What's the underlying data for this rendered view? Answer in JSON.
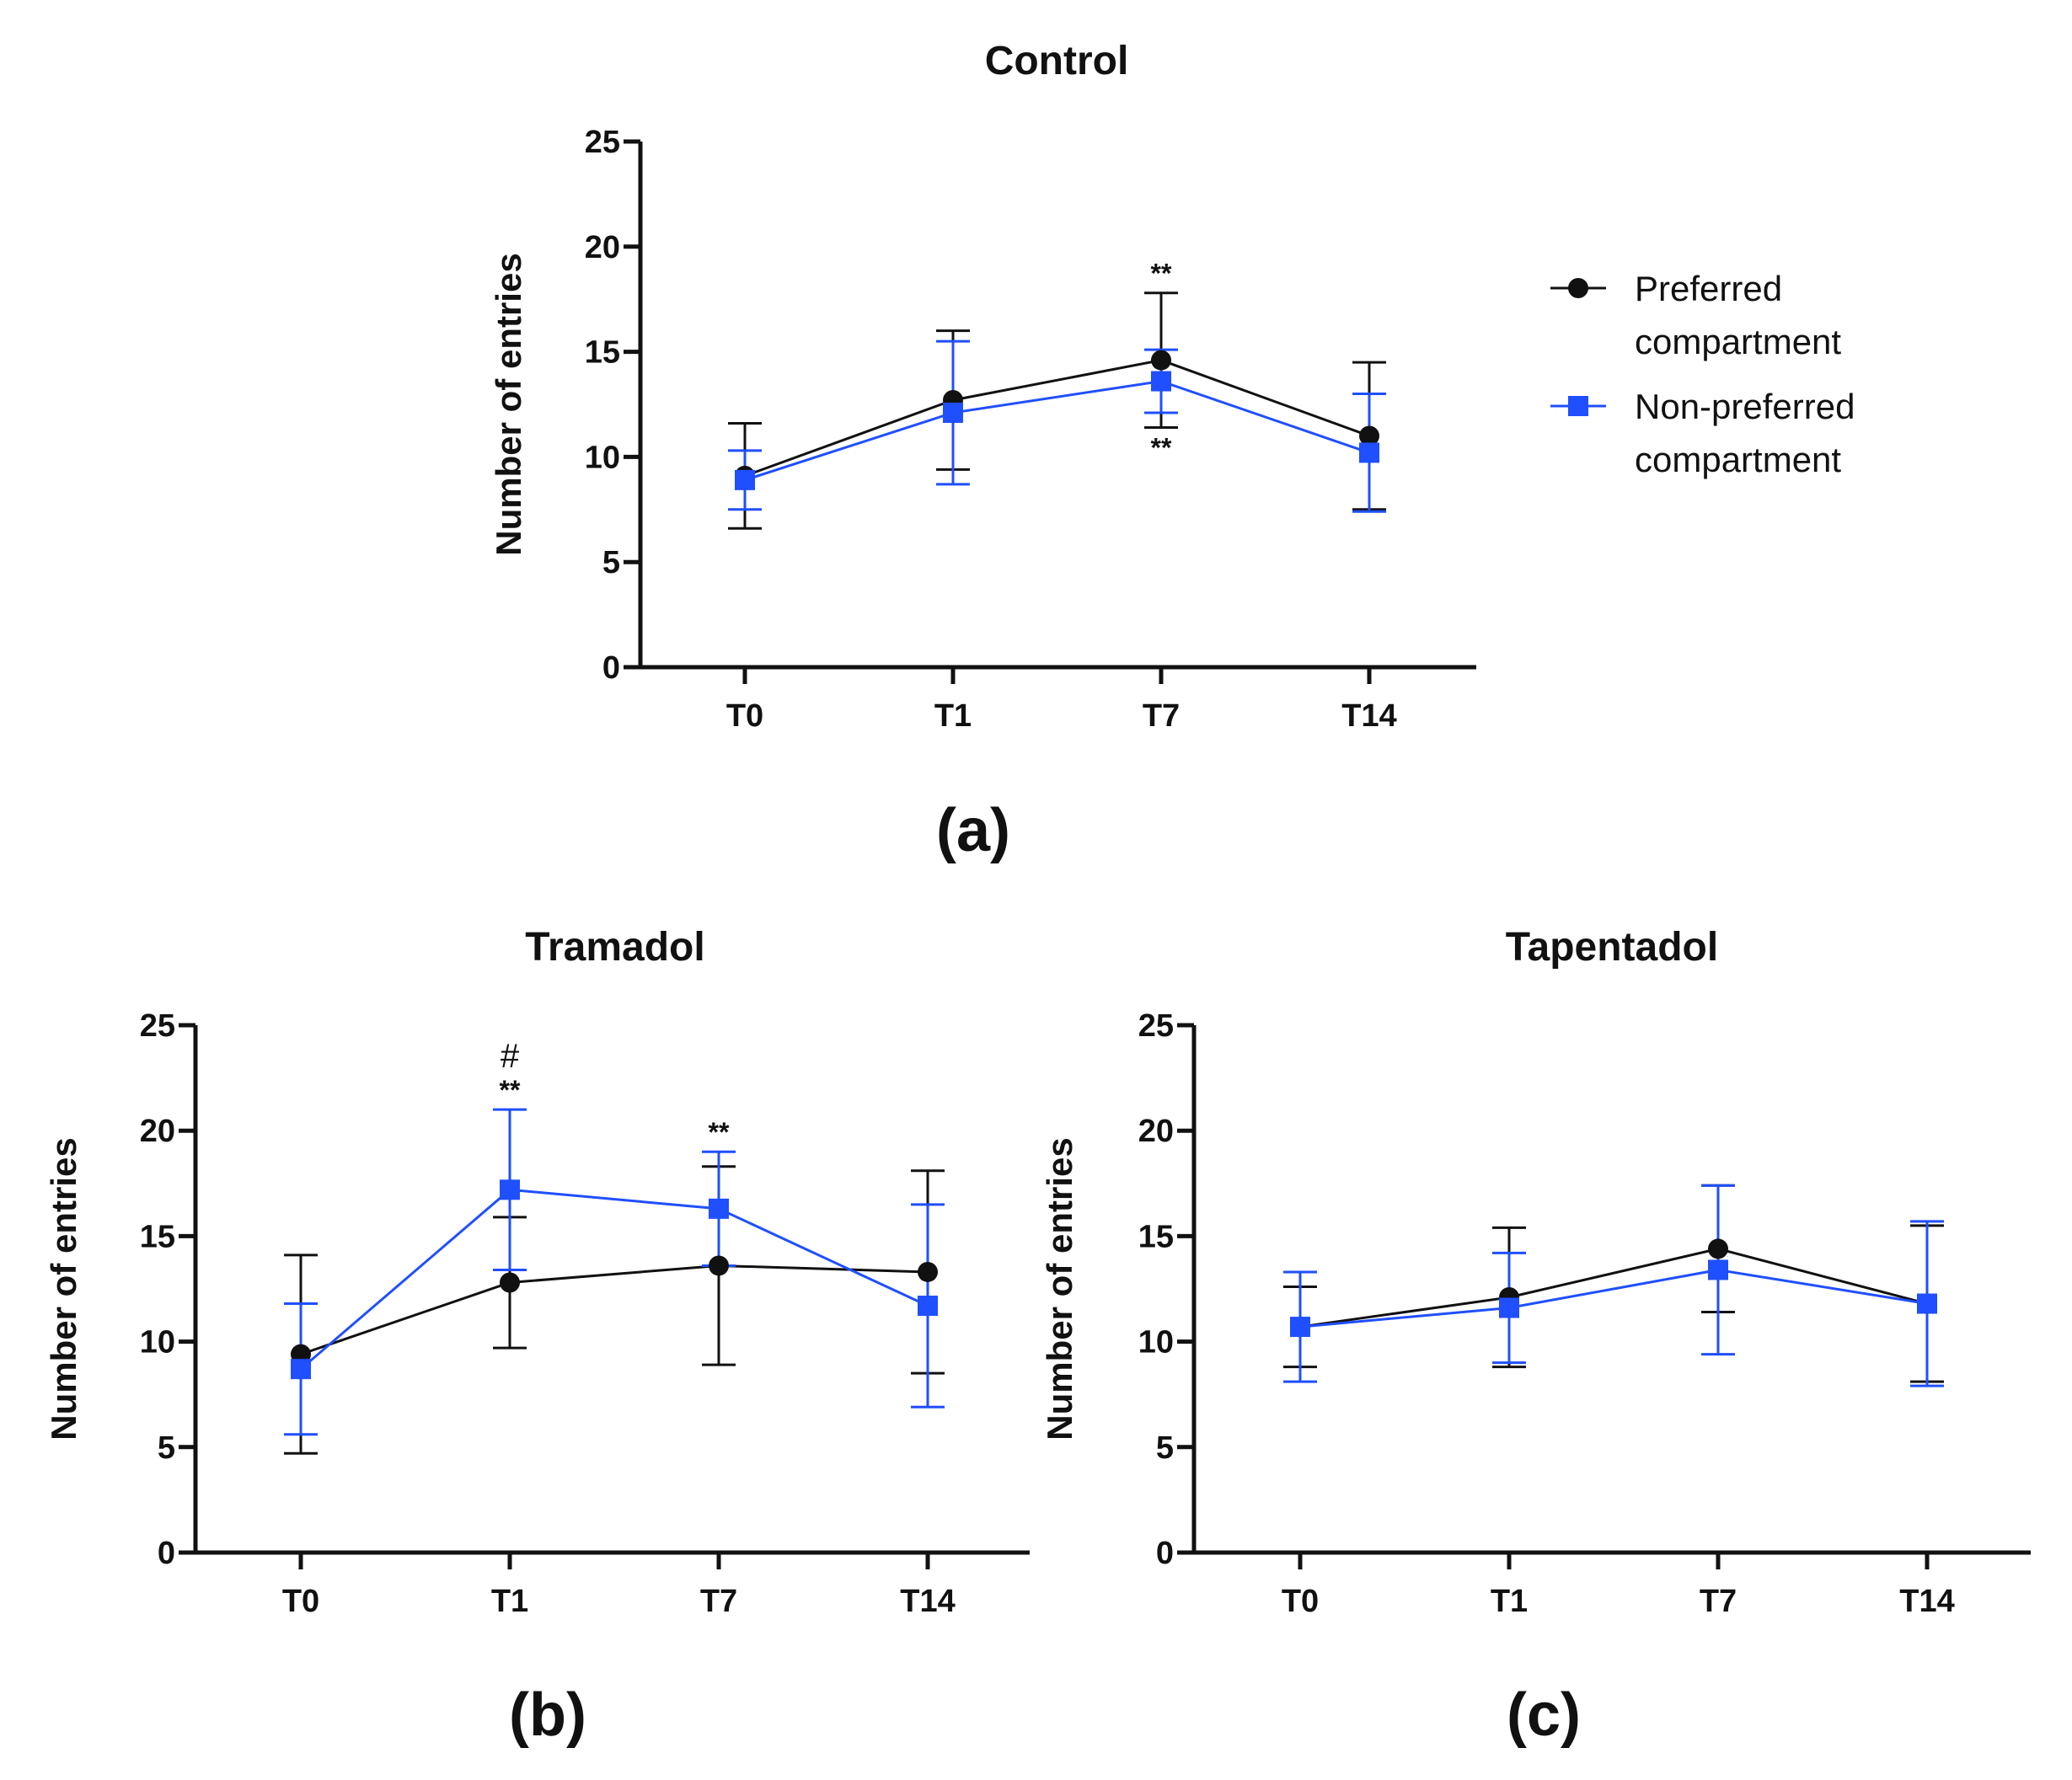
{
  "legend": {
    "series": [
      {
        "name": "Preferred compartment",
        "lines": [
          "Preferred",
          "compartment"
        ],
        "color": "#111111",
        "marker": "circle"
      },
      {
        "name": "Non-preferred compartment",
        "lines": [
          "Non-preferred",
          "compartment"
        ],
        "color": "#1f4fff",
        "marker": "square"
      }
    ]
  },
  "chart_data": [
    {
      "id": "a",
      "type": "line",
      "title": "Control",
      "panel_label": "(a)",
      "ylabel": "Number of entries",
      "xlabel": "",
      "categories": [
        "T0",
        "T1",
        "T7",
        "T14"
      ],
      "ylim": [
        0,
        25
      ],
      "yticks": [
        0,
        5,
        10,
        15,
        20,
        25
      ],
      "series": [
        {
          "name": "Preferred compartment",
          "values": [
            9.1,
            12.7,
            14.6,
            11.0
          ],
          "errors": [
            2.5,
            3.3,
            3.2,
            3.5
          ]
        },
        {
          "name": "Non-preferred compartment",
          "values": [
            8.9,
            12.1,
            13.6,
            10.2
          ],
          "errors": [
            1.4,
            3.4,
            1.5,
            2.8
          ]
        }
      ],
      "annotations": [
        {
          "text": "**",
          "category": "T7",
          "position": "above"
        },
        {
          "text": "**",
          "category": "T7",
          "position": "below"
        }
      ]
    },
    {
      "id": "b",
      "type": "line",
      "title": "Tramadol",
      "panel_label": "(b)",
      "ylabel": "Number of entries",
      "xlabel": "",
      "categories": [
        "T0",
        "T1",
        "T7",
        "T14"
      ],
      "ylim": [
        0,
        25
      ],
      "yticks": [
        0,
        5,
        10,
        15,
        20,
        25
      ],
      "series": [
        {
          "name": "Preferred compartment",
          "values": [
            9.4,
            12.8,
            13.6,
            13.3
          ],
          "errors": [
            4.7,
            3.1,
            4.7,
            4.8
          ]
        },
        {
          "name": "Non-preferred compartment",
          "values": [
            8.7,
            17.2,
            16.3,
            11.7
          ],
          "errors": [
            3.1,
            3.8,
            2.7,
            4.8
          ]
        }
      ],
      "annotations": [
        {
          "text": "#",
          "category": "T1",
          "position": "above-high"
        },
        {
          "text": "**",
          "category": "T1",
          "position": "above"
        },
        {
          "text": "**",
          "category": "T7",
          "position": "above"
        }
      ]
    },
    {
      "id": "c",
      "type": "line",
      "title": "Tapentadol",
      "panel_label": "(c)",
      "ylabel": "Number of entries",
      "xlabel": "",
      "categories": [
        "T0",
        "T1",
        "T7",
        "T14"
      ],
      "ylim": [
        0,
        25
      ],
      "yticks": [
        0,
        5,
        10,
        15,
        20,
        25
      ],
      "series": [
        {
          "name": "Preferred compartment",
          "values": [
            10.7,
            12.1,
            14.4,
            11.8
          ],
          "errors": [
            1.9,
            3.3,
            3.0,
            3.7
          ]
        },
        {
          "name": "Non-preferred compartment",
          "values": [
            10.7,
            11.6,
            13.4,
            11.8
          ],
          "errors": [
            2.6,
            2.6,
            4.0,
            3.9
          ]
        }
      ],
      "annotations": []
    }
  ]
}
